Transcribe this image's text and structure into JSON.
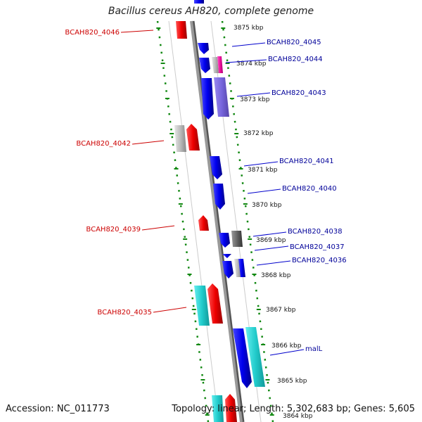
{
  "title": "Bacillus cereus AH820, complete genome",
  "footer": {
    "accession": "Accession: NC_011773",
    "summary": "Topology: linear; Length: 5,302,683 bp; Genes: 5,605"
  },
  "colors": {
    "forward_label": "#cc0000",
    "reverse_label": "#000099",
    "backbone": "#888888",
    "tick": "#118811"
  },
  "ticks": [
    "3875 kbp",
    "3874 kbp",
    "3873 kbp",
    "3872 kbp",
    "3871 kbp",
    "3870 kbp",
    "3869 kbp",
    "3868 kbp",
    "3867 kbp",
    "3866 kbp",
    "3865 kbp",
    "3864 kbp"
  ],
  "labels": {
    "left": [
      "BCAH820_4046",
      "BCAH820_4042",
      "BCAH820_4039",
      "BCAH820_4035"
    ],
    "right": [
      "BCAH820_4045",
      "BCAH820_4044",
      "BCAH820_4043",
      "BCAH820_4041",
      "BCAH820_4040",
      "BCAH820_4038",
      "BCAH820_4037",
      "BCAH820_4036",
      "malL"
    ]
  }
}
